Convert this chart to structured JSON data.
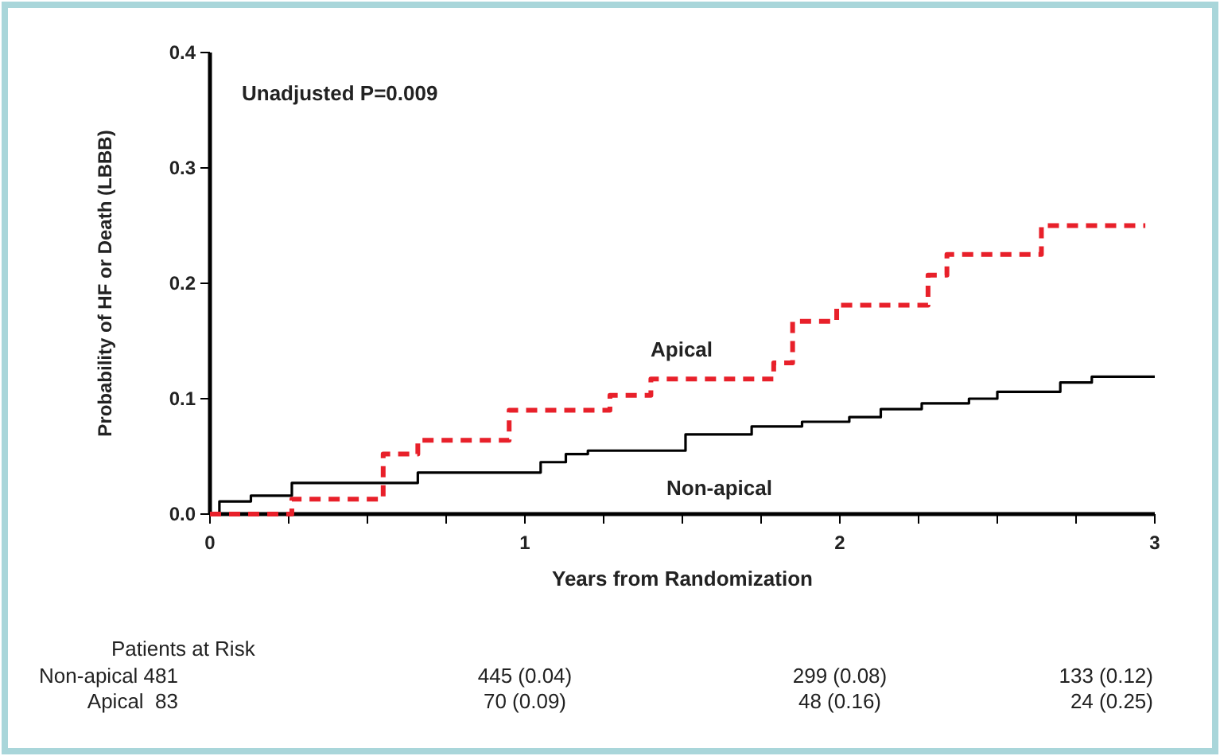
{
  "chart_data": {
    "type": "step",
    "xlabel": "Years from Randomization",
    "ylabel": "Probability of HF or Death (LBBB)",
    "xlim": [
      0,
      3
    ],
    "ylim": [
      0,
      0.4
    ],
    "xticks": [
      0,
      {
        "value": 0.25,
        "label": null
      },
      {
        "value": 0.5,
        "label": null
      },
      {
        "value": 0.75,
        "label": null
      },
      1,
      {
        "value": 1.25,
        "label": null
      },
      {
        "value": 1.5,
        "label": null
      },
      {
        "value": 1.75,
        "label": null
      },
      2,
      {
        "value": 2.25,
        "label": null
      },
      {
        "value": 2.5,
        "label": null
      },
      {
        "value": 2.75,
        "label": null
      },
      3
    ],
    "yticks": [
      {
        "value": 0,
        "label": "0.0"
      },
      0.1,
      0.2,
      0.3,
      0.4
    ],
    "legend": false,
    "grid": false,
    "series": [
      {
        "name": "Non-apical",
        "color": "#000000",
        "line_style": "solid",
        "x": [
          0,
          0.03,
          0.13,
          0.26,
          0.66,
          1.05,
          1.13,
          1.2,
          1.51,
          1.72,
          1.88,
          2.03,
          2.13,
          2.26,
          2.41,
          2.5,
          2.7,
          2.8,
          3.0
        ],
        "values": [
          0,
          0.011,
          0.016,
          0.027,
          0.036,
          0.045,
          0.052,
          0.055,
          0.069,
          0.076,
          0.08,
          0.084,
          0.091,
          0.096,
          0.1,
          0.106,
          0.114,
          0.119,
          0.119
        ]
      },
      {
        "name": "Apical",
        "color": "#e8202a",
        "line_style": "dashed",
        "x": [
          0,
          0.26,
          0.55,
          0.66,
          0.95,
          1.27,
          1.4,
          1.79,
          1.85,
          1.99,
          2.28,
          2.34,
          2.64,
          2.97
        ],
        "values": [
          0,
          0.013,
          0.052,
          0.064,
          0.09,
          0.103,
          0.117,
          0.131,
          0.167,
          0.181,
          0.207,
          0.225,
          0.25,
          0.25
        ]
      }
    ],
    "annotations": [
      "Unadjusted P=0.009",
      "Patients at Risk",
      "Non-apical 481",
      "445 (0.04)",
      "299 (0.08)",
      "133 (0.12)",
      "Apical  83",
      "70 (0.09)",
      "48 (0.16)",
      "24 (0.25)"
    ]
  }
}
